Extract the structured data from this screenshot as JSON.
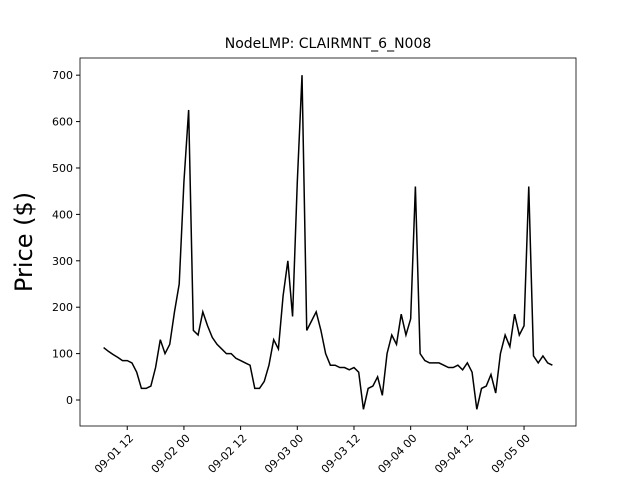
{
  "chart_data": {
    "type": "line",
    "title": "NodeLMP: CLAIRMNT_6_N008",
    "y_label": "Price ($)",
    "x": [
      "09-01 07",
      "09-01 08",
      "09-01 09",
      "09-01 10",
      "09-01 11",
      "09-01 12",
      "09-01 13",
      "09-01 14",
      "09-01 15",
      "09-01 16",
      "09-01 17",
      "09-01 18",
      "09-01 19",
      "09-01 20",
      "09-01 21",
      "09-01 22",
      "09-01 23",
      "09-02 00",
      "09-02 01",
      "09-02 02",
      "09-02 03",
      "09-02 04",
      "09-02 05",
      "09-02 06",
      "09-02 07",
      "09-02 08",
      "09-02 09",
      "09-02 10",
      "09-02 11",
      "09-02 12",
      "09-02 13",
      "09-02 14",
      "09-02 15",
      "09-02 16",
      "09-02 17",
      "09-02 18",
      "09-02 19",
      "09-02 20",
      "09-02 21",
      "09-02 22",
      "09-02 23",
      "09-03 00",
      "09-03 01",
      "09-03 02",
      "09-03 03",
      "09-03 04",
      "09-03 05",
      "09-03 06",
      "09-03 07",
      "09-03 08",
      "09-03 09",
      "09-03 10",
      "09-03 11",
      "09-03 12",
      "09-03 13",
      "09-03 14",
      "09-03 15",
      "09-03 16",
      "09-03 17",
      "09-03 18",
      "09-03 19",
      "09-03 20",
      "09-03 21",
      "09-03 22",
      "09-03 23",
      "09-04 00",
      "09-04 01",
      "09-04 02",
      "09-04 03",
      "09-04 04",
      "09-04 05",
      "09-04 06",
      "09-04 07",
      "09-04 08",
      "09-04 09",
      "09-04 10",
      "09-04 11",
      "09-04 12",
      "09-04 13",
      "09-04 14",
      "09-04 15",
      "09-04 16",
      "09-04 17",
      "09-04 18",
      "09-04 19",
      "09-04 20",
      "09-04 21",
      "09-04 22",
      "09-04 23",
      "09-05 00",
      "09-05 01",
      "09-05 02",
      "09-05 03",
      "09-05 04",
      "09-05 05",
      "09-05 06"
    ],
    "series": [
      {
        "color": "#000000",
        "values": [
          113,
          105,
          98,
          92,
          85,
          85,
          80,
          60,
          25,
          25,
          30,
          70,
          130,
          100,
          120,
          190,
          250,
          470,
          625,
          150,
          140,
          190,
          160,
          135,
          120,
          110,
          100,
          100,
          90,
          85,
          80,
          75,
          25,
          25,
          40,
          75,
          130,
          110,
          225,
          300,
          180,
          470,
          700,
          150,
          170,
          190,
          150,
          100,
          75,
          75,
          70,
          70,
          65,
          70,
          60,
          -20,
          25,
          30,
          50,
          10,
          100,
          140,
          120,
          185,
          140,
          175,
          460,
          100,
          85,
          80,
          80,
          80,
          75,
          70,
          70,
          75,
          65,
          80,
          60,
          -20,
          25,
          30,
          55,
          15,
          100,
          140,
          115,
          185,
          140,
          160,
          460,
          95,
          80,
          95,
          80,
          75
        ]
      }
    ],
    "xlim": [
      "09-01 02",
      "09-05 11"
    ],
    "xticks": [
      "09-01 12",
      "09-02 00",
      "09-02 12",
      "09-03 00",
      "09-03 12",
      "09-04 00",
      "09-04 12",
      "09-05 00"
    ],
    "ylim": [
      -56,
      737
    ],
    "yticks": [
      0,
      100,
      200,
      300,
      400,
      500,
      600,
      700
    ]
  }
}
